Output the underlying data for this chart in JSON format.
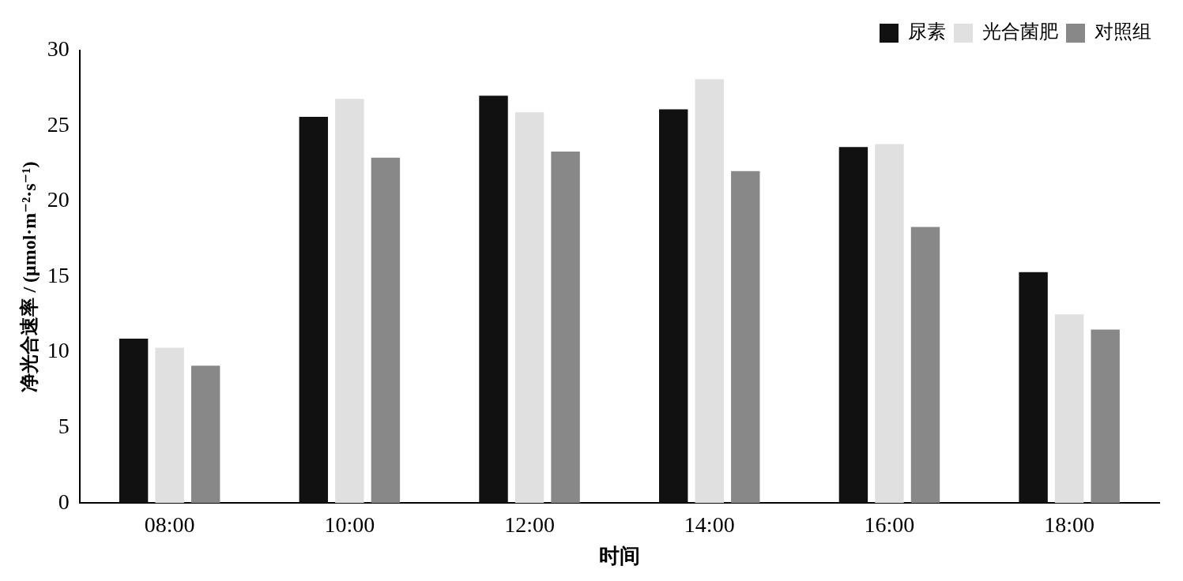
{
  "chart_data": {
    "type": "bar",
    "xlabel": "时间",
    "ylabel": "净光合速率 / (μmol·m⁻²·s⁻¹)",
    "categories": [
      "08:00",
      "10:00",
      "12:00",
      "14:00",
      "16:00",
      "18:00"
    ],
    "series": [
      {
        "name": "尿素",
        "color": "#111111",
        "values": [
          10.9,
          25.6,
          27,
          26.1,
          23.6,
          15.3
        ]
      },
      {
        "name": "光合菌肥",
        "color": "#e0e0e0",
        "values": [
          10.3,
          26.8,
          25.9,
          28.1,
          23.8,
          12.5
        ]
      },
      {
        "name": "对照组",
        "color": "#888888",
        "values": [
          9.1,
          22.9,
          23.3,
          22,
          18.3,
          11.5
        ]
      }
    ],
    "ylim": [
      0,
      30
    ],
    "yticks": [
      0,
      5,
      10,
      15,
      20,
      25,
      30
    ],
    "grid": false,
    "legend": "top right"
  }
}
